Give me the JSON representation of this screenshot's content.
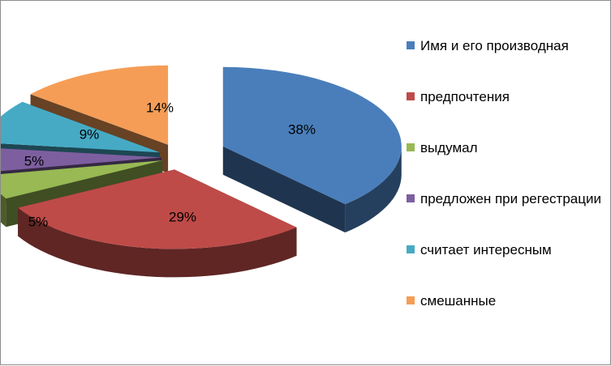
{
  "chart_data": {
    "type": "pie",
    "style": "3d-exploded",
    "title": "",
    "legend_position": "right",
    "slices": [
      {
        "label": "Имя и его производная",
        "value": 38,
        "display": "38%",
        "color": "#4a7ebb"
      },
      {
        "label": "предпочтения",
        "value": 29,
        "display": "29%",
        "color": "#be4b48"
      },
      {
        "label": "выдумал",
        "value": 5,
        "display": "5%",
        "color": "#98b954"
      },
      {
        "label": "предложен при регестрации",
        "value": 5,
        "display": "5%",
        "color": "#7d5fa0"
      },
      {
        "label": "считает интересным",
        "value": 9,
        "display": "9%",
        "color": "#46aac5"
      },
      {
        "label": "смешанные",
        "value": 14,
        "display": "14%",
        "color": "#f59d56"
      }
    ]
  }
}
